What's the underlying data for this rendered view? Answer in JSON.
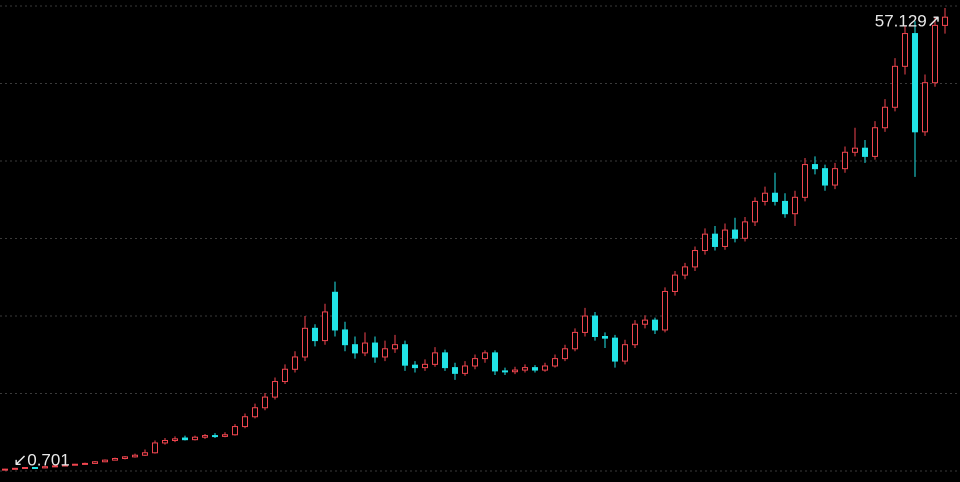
{
  "chart_data": {
    "type": "candlestick",
    "up_color": "#f0454f",
    "down_color": "#21e3e6",
    "background": "#000000",
    "ylim": [
      -0.77,
      58.1
    ],
    "open": [
      0.75,
      0.8,
      0.9,
      1.0,
      0.95,
      1.1,
      1.2,
      1.3,
      1.4,
      1.5,
      1.7,
      1.9,
      2.1,
      2.3,
      2.5,
      2.8,
      4.0,
      4.3,
      4.6,
      4.4,
      4.7,
      4.9,
      4.8,
      5.0,
      6.0,
      7.2,
      8.3,
      9.6,
      11.5,
      13.0,
      14.5,
      18.0,
      16.5,
      22.4,
      17.8,
      16.0,
      15.0,
      16.2,
      14.5,
      15.5,
      16.0,
      13.5,
      13.2,
      13.6,
      15.0,
      13.2,
      12.5,
      13.4,
      14.3,
      15.0,
      12.8,
      12.7,
      12.9,
      13.2,
      12.9,
      13.4,
      14.3,
      15.5,
      17.5,
      19.5,
      17.0,
      16.8,
      14.0,
      16.0,
      18.5,
      19.0,
      17.8,
      22.5,
      24.5,
      25.5,
      27.5,
      29.5,
      28.0,
      30.0,
      29.0,
      31.0,
      33.5,
      34.5,
      33.5,
      32.0,
      34.0,
      38.0,
      37.5,
      35.5,
      37.5,
      39.5,
      40.0,
      39.0,
      42.5,
      45.0,
      50.0,
      54.0,
      42.0,
      48.0,
      55.0
    ],
    "high": [
      0.85,
      0.95,
      1.05,
      1.05,
      1.15,
      1.25,
      1.35,
      1.45,
      1.6,
      1.8,
      2.0,
      2.2,
      2.4,
      2.7,
      3.2,
      4.3,
      4.6,
      4.8,
      4.9,
      4.9,
      5.1,
      5.2,
      5.3,
      6.3,
      7.6,
      8.8,
      10.1,
      12.0,
      13.6,
      15.2,
      19.5,
      18.5,
      21.0,
      23.7,
      18.8,
      17.0,
      17.5,
      17.0,
      16.5,
      17.2,
      16.5,
      14.0,
      14.2,
      15.7,
      15.4,
      13.8,
      14.0,
      14.8,
      15.3,
      15.3,
      13.2,
      13.3,
      13.6,
      13.5,
      13.8,
      14.8,
      16.0,
      18.0,
      20.5,
      20.0,
      17.5,
      17.2,
      16.6,
      19.0,
      19.6,
      19.3,
      23.0,
      25.0,
      26.0,
      28.0,
      30.2,
      30.5,
      30.8,
      31.5,
      31.6,
      34.0,
      35.3,
      37.0,
      34.5,
      34.8,
      38.8,
      39.0,
      38.0,
      38.2,
      40.2,
      42.5,
      41.0,
      43.3,
      46.0,
      51.0,
      55.0,
      55.5,
      49.0,
      56.0,
      57.129
    ],
    "low": [
      0.701,
      0.75,
      0.85,
      0.9,
      0.9,
      1.05,
      1.15,
      1.25,
      1.35,
      1.45,
      1.65,
      1.85,
      2.0,
      2.2,
      2.4,
      2.7,
      3.8,
      4.1,
      4.3,
      4.3,
      4.5,
      4.6,
      4.7,
      4.9,
      5.8,
      7.0,
      8.0,
      9.3,
      11.2,
      12.6,
      14.0,
      15.8,
      16.0,
      17.0,
      15.2,
      14.3,
      14.6,
      13.8,
      14.0,
      15.0,
      12.8,
      12.6,
      12.8,
      13.3,
      12.8,
      11.7,
      12.2,
      13.0,
      13.8,
      12.3,
      12.3,
      12.4,
      12.6,
      12.6,
      12.7,
      13.2,
      14.0,
      15.2,
      17.0,
      16.5,
      15.6,
      13.2,
      13.6,
      15.6,
      18.0,
      17.3,
      17.5,
      22.0,
      24.0,
      25.0,
      27.0,
      27.5,
      27.6,
      28.5,
      28.6,
      30.5,
      33.0,
      33.0,
      31.5,
      30.5,
      33.5,
      36.8,
      34.8,
      35.0,
      37.0,
      39.0,
      38.2,
      38.6,
      42.0,
      44.5,
      49.0,
      36.5,
      41.5,
      47.5,
      54.0
    ],
    "close": [
      0.8,
      0.9,
      1.0,
      0.95,
      1.1,
      1.2,
      1.3,
      1.4,
      1.5,
      1.7,
      1.9,
      2.1,
      2.3,
      2.5,
      2.8,
      4.0,
      4.3,
      4.5,
      4.4,
      4.7,
      4.9,
      4.8,
      5.0,
      6.0,
      7.2,
      8.3,
      9.6,
      11.5,
      13.0,
      14.5,
      18.0,
      16.5,
      20.0,
      17.8,
      16.0,
      15.0,
      16.2,
      14.5,
      15.5,
      16.0,
      13.5,
      13.2,
      13.6,
      15.0,
      13.2,
      12.5,
      13.4,
      14.3,
      15.0,
      12.8,
      12.7,
      12.9,
      13.2,
      12.9,
      13.4,
      14.3,
      15.5,
      17.5,
      19.5,
      17.0,
      16.8,
      14.0,
      16.0,
      18.5,
      19.0,
      17.8,
      22.5,
      24.5,
      25.5,
      27.5,
      29.5,
      28.0,
      30.0,
      29.0,
      31.0,
      33.5,
      34.5,
      33.5,
      32.0,
      34.0,
      38.0,
      37.5,
      35.5,
      37.5,
      39.5,
      40.0,
      39.0,
      42.5,
      45.0,
      50.0,
      54.0,
      42.0,
      48.0,
      55.0,
      56.0
    ],
    "annotations": [
      {
        "text": "↙0.701",
        "value": 0.701,
        "kind": "low"
      },
      {
        "text": "57.129↗",
        "value": 57.129,
        "kind": "high"
      }
    ]
  }
}
